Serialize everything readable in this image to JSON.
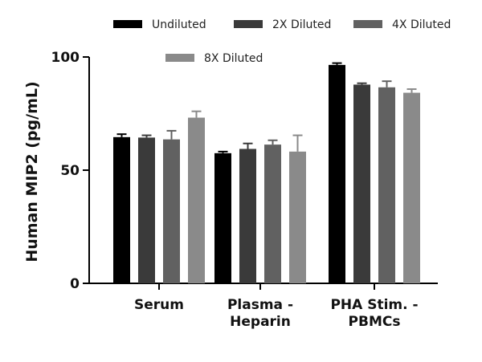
{
  "chart_data": {
    "type": "bar",
    "title": "",
    "xlabel": "",
    "ylabel": "Human MIP2 (pg/mL)",
    "ylim": [
      0,
      100
    ],
    "yticks": [
      0,
      50,
      100
    ],
    "grid": false,
    "legend_position": "top",
    "categories": [
      [
        "Serum"
      ],
      [
        "Plasma -",
        "Heparin"
      ],
      [
        "PHA Stim. -",
        "PBMCs"
      ]
    ],
    "series": [
      {
        "name": "Undiluted",
        "color": "#000000",
        "values": [
          64.6,
          57.5,
          96.5
        ],
        "errors": [
          1.3,
          0.7,
          0.8
        ]
      },
      {
        "name": "2X Diluted",
        "color": "#3a3a3a",
        "values": [
          64.4,
          59.4,
          87.8
        ],
        "errors": [
          1.0,
          2.4,
          0.6
        ]
      },
      {
        "name": "4X Diluted",
        "color": "#616161",
        "values": [
          63.6,
          61.3,
          86.6
        ],
        "errors": [
          3.8,
          1.9,
          2.7
        ]
      },
      {
        "name": "8X Diluted",
        "color": "#8a8a8a",
        "values": [
          73.2,
          58.2,
          84.2
        ],
        "errors": [
          2.8,
          7.2,
          1.6
        ]
      }
    ]
  }
}
